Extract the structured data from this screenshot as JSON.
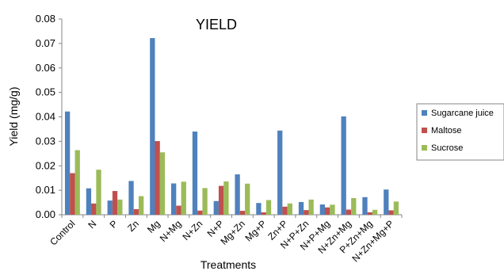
{
  "chart_data": {
    "type": "bar",
    "title": "YIELD",
    "xlabel": "Treatments",
    "ylabel": "Yield (mg/g)",
    "ylim": [
      0,
      0.08
    ],
    "yticks": [
      "0.00",
      "0.01",
      "0.02",
      "0.03",
      "0.04",
      "0.05",
      "0.06",
      "0.07",
      "0.08"
    ],
    "grid": false,
    "legend_position": "right",
    "categories": [
      "Control",
      "N",
      "P",
      "Zn",
      "Mg",
      "N+Mg",
      "N+Zn",
      "N+P",
      "Mg+Zn",
      "Mg+P",
      "Zn+P",
      "N+P+Zn",
      "N+P+Mg",
      "N+Zn+Mg",
      "P+Zn+Mg",
      "N+Zn+Mg+P"
    ],
    "series": [
      {
        "name": "Sugarcane juice",
        "color": "#4f81bd",
        "values": [
          0.0422,
          0.0108,
          0.0058,
          0.0138,
          0.0722,
          0.0128,
          0.034,
          0.0056,
          0.0165,
          0.0048,
          0.0344,
          0.0052,
          0.0042,
          0.0402,
          0.0072,
          0.0103
        ]
      },
      {
        "name": "Maltose",
        "color": "#c0504d",
        "values": [
          0.017,
          0.0046,
          0.0097,
          0.0023,
          0.0301,
          0.0037,
          0.0017,
          0.0118,
          0.0016,
          0.001,
          0.0033,
          0.0019,
          0.003,
          0.0021,
          0.001,
          0.0018
        ]
      },
      {
        "name": "Sucrose",
        "color": "#9bbb59",
        "values": [
          0.0264,
          0.0184,
          0.0062,
          0.0076,
          0.0255,
          0.0135,
          0.0109,
          0.0136,
          0.0127,
          0.006,
          0.0046,
          0.0062,
          0.0041,
          0.0068,
          0.002,
          0.0054
        ]
      }
    ]
  }
}
